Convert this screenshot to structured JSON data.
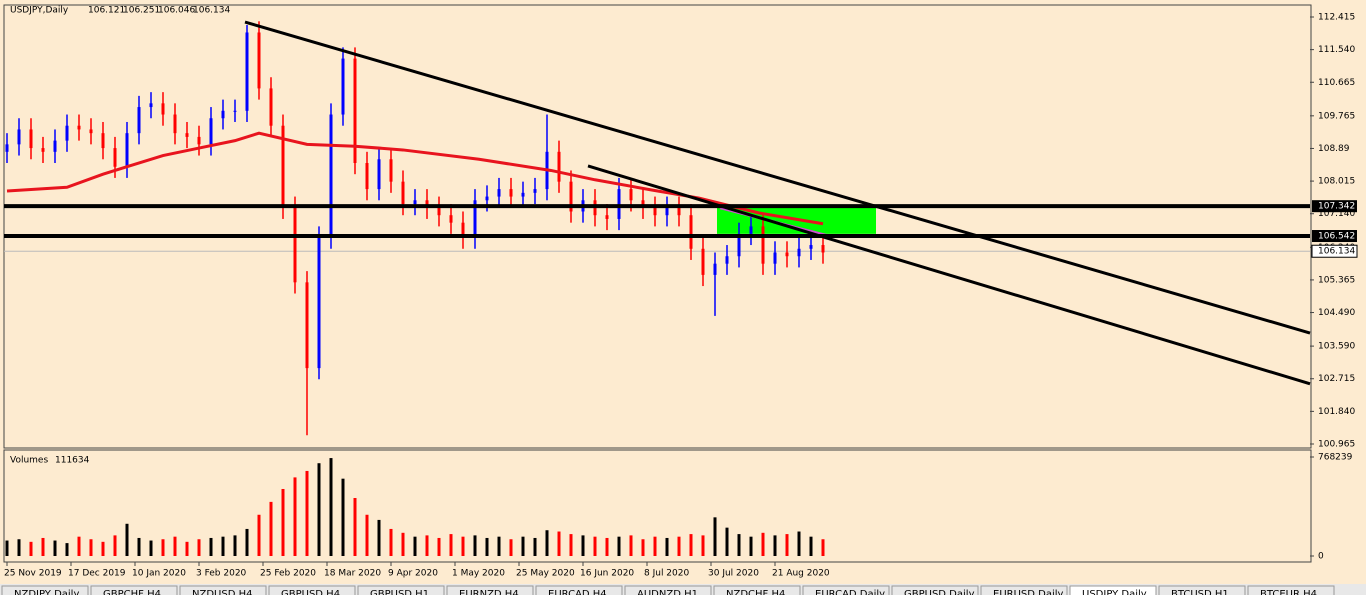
{
  "chart_data": {
    "type": "candlestick",
    "title": "USDJPY,Daily",
    "header_prices": [
      106.121,
      106.251,
      106.046,
      106.134
    ],
    "x": [
      0,
      3,
      6,
      9,
      12,
      15,
      18,
      21,
      24,
      27,
      30,
      33,
      36,
      39,
      42,
      45,
      48,
      51,
      54,
      57,
      60,
      63,
      66,
      69,
      72,
      75,
      78,
      81,
      84,
      87,
      90,
      93,
      96,
      99,
      102,
      105,
      108,
      111,
      114,
      117,
      120,
      123,
      126,
      129,
      132,
      135,
      138,
      141,
      144,
      147,
      150,
      153,
      156,
      159,
      162,
      165,
      168,
      171,
      174,
      177,
      180,
      183,
      186,
      189,
      192,
      195,
      198,
      201,
      204
    ],
    "open": [
      108.8,
      109.0,
      109.4,
      108.9,
      108.8,
      109.1,
      109.5,
      109.4,
      109.3,
      108.9,
      108.4,
      109.3,
      110.0,
      110.1,
      109.8,
      109.3,
      109.2,
      109.0,
      109.7,
      109.9,
      109.9,
      112.0,
      110.5,
      109.5,
      107.3,
      105.3,
      103.0,
      106.5,
      109.8,
      111.3,
      108.5,
      107.8,
      108.6,
      108.0,
      107.4,
      107.5,
      107.3,
      107.1,
      106.9,
      106.5,
      107.5,
      107.6,
      107.8,
      107.6,
      107.7,
      107.8,
      108.8,
      108.0,
      107.2,
      107.5,
      107.1,
      107.0,
      107.8,
      107.5,
      107.3,
      107.1,
      107.3,
      107.1,
      106.2,
      105.5,
      105.8,
      106.0,
      106.6,
      106.8,
      105.8,
      106.1,
      106.0,
      106.2,
      106.3
    ],
    "high": [
      109.3,
      109.7,
      109.7,
      109.2,
      109.4,
      109.8,
      109.8,
      109.7,
      109.6,
      109.2,
      109.6,
      110.3,
      110.4,
      110.4,
      110.1,
      109.6,
      109.5,
      110.0,
      110.2,
      110.2,
      112.2,
      112.3,
      110.8,
      109.8,
      107.6,
      105.6,
      106.8,
      110.1,
      111.6,
      111.6,
      108.8,
      108.9,
      108.9,
      108.3,
      107.8,
      107.8,
      107.6,
      107.4,
      107.2,
      107.8,
      107.9,
      108.1,
      108.1,
      108.0,
      108.1,
      109.8,
      109.1,
      108.3,
      107.8,
      107.8,
      107.4,
      108.1,
      108.1,
      107.8,
      107.6,
      107.6,
      107.6,
      107.4,
      106.5,
      106.1,
      106.3,
      106.9,
      107.1,
      107.1,
      106.4,
      106.4,
      106.5,
      106.6,
      106.6
    ],
    "low": [
      108.5,
      108.7,
      108.6,
      108.5,
      108.5,
      108.8,
      109.1,
      109.0,
      108.6,
      108.1,
      108.1,
      109.0,
      109.7,
      109.5,
      109.0,
      108.9,
      108.7,
      108.7,
      109.4,
      109.6,
      109.6,
      110.2,
      109.2,
      107.0,
      105.0,
      101.2,
      102.7,
      106.2,
      109.5,
      108.2,
      107.5,
      107.5,
      107.7,
      107.1,
      107.1,
      107.0,
      106.8,
      106.6,
      106.2,
      106.2,
      107.2,
      107.3,
      107.3,
      107.3,
      107.4,
      107.5,
      107.7,
      106.9,
      106.9,
      106.8,
      106.7,
      106.7,
      107.2,
      107.0,
      106.8,
      106.8,
      106.8,
      105.9,
      105.2,
      104.4,
      105.5,
      105.7,
      106.3,
      105.5,
      105.5,
      105.7,
      105.7,
      105.9,
      105.8
    ],
    "close": [
      109.0,
      109.4,
      108.9,
      108.8,
      109.1,
      109.5,
      109.4,
      109.3,
      108.9,
      108.4,
      109.3,
      110.0,
      110.1,
      109.8,
      109.3,
      109.2,
      109.0,
      109.7,
      109.9,
      109.9,
      112.0,
      110.5,
      109.5,
      107.3,
      105.3,
      103.0,
      106.5,
      109.8,
      111.3,
      108.5,
      107.8,
      108.6,
      108.0,
      107.4,
      107.5,
      107.3,
      107.1,
      106.9,
      106.5,
      107.5,
      107.6,
      107.8,
      107.6,
      107.7,
      107.8,
      108.8,
      108.0,
      107.2,
      107.5,
      107.1,
      107.0,
      107.8,
      107.5,
      107.3,
      107.1,
      107.3,
      107.1,
      106.2,
      105.5,
      105.8,
      106.0,
      106.6,
      106.8,
      105.8,
      106.1,
      106.0,
      106.2,
      106.3,
      106.1
    ],
    "volume": [
      120000,
      130000,
      110000,
      140000,
      120000,
      100000,
      150000,
      130000,
      110000,
      160000,
      250000,
      140000,
      120000,
      130000,
      150000,
      110000,
      130000,
      140000,
      150000,
      160000,
      210000,
      320000,
      420000,
      520000,
      610000,
      660000,
      720000,
      760000,
      600000,
      450000,
      320000,
      280000,
      210000,
      180000,
      150000,
      160000,
      140000,
      170000,
      150000,
      160000,
      140000,
      150000,
      130000,
      150000,
      140000,
      200000,
      190000,
      170000,
      160000,
      150000,
      140000,
      150000,
      160000,
      130000,
      150000,
      140000,
      150000,
      170000,
      160000,
      300000,
      220000,
      170000,
      150000,
      180000,
      160000,
      170000,
      190000,
      150000,
      130000
    ],
    "up_color": "#0000ff",
    "down_color": "#ff0000",
    "moving_average": {
      "color": "#e8141e",
      "x": [
        0,
        15,
        24,
        30,
        39,
        48,
        57,
        63,
        75,
        87,
        99,
        118,
        136,
        147,
        161,
        173,
        188,
        204
      ],
      "values": [
        107.75,
        107.85,
        108.2,
        108.4,
        108.7,
        108.9,
        109.1,
        109.3,
        109.0,
        108.95,
        108.85,
        108.6,
        108.3,
        108.05,
        107.78,
        107.56,
        107.16,
        106.87
      ]
    },
    "xlim": [
      -0.5,
      325.75
    ],
    "ylim": [
      100.965,
      112.415
    ],
    "yticks": [
      112.415,
      {
        "value": 111.54,
        "label": "111.540"
      },
      110.665,
      109.765,
      108.89,
      108.015,
      {
        "value": 107.14,
        "label": "107.140"
      },
      {
        "value": 106.24,
        "label": "106.240"
      },
      105.365,
      {
        "value": 104.49,
        "label": "104.490"
      },
      {
        "value": 103.59,
        "label": "103.590"
      },
      102.715,
      {
        "value": 101.84,
        "label": "101.840"
      },
      100.965
    ],
    "xticks": [
      {
        "value": 0,
        "label": "25 Nov 2019"
      },
      {
        "value": 16,
        "label": "17 Dec 2019"
      },
      {
        "value": 32,
        "label": "10 Jan 2020"
      },
      {
        "value": 48,
        "label": "3 Feb 2020"
      },
      {
        "value": 64,
        "label": "25 Feb 2020"
      },
      {
        "value": 80,
        "label": "18 Mar 2020"
      },
      {
        "value": 96,
        "label": "9 Apr 2020"
      },
      {
        "value": 112,
        "label": "1 May 2020"
      },
      {
        "value": 128,
        "label": "25 May 2020"
      },
      {
        "value": 144,
        "label": "16 Jun 2020"
      },
      {
        "value": 160,
        "label": "8 Jul 2020"
      },
      {
        "value": 176,
        "label": "30 Jul 2020"
      },
      {
        "value": 192,
        "label": "21 Aug 2020"
      }
    ],
    "last_price": 106.134,
    "horizontal_lines": [
      107.342,
      106.542
    ],
    "trendlines": [
      {
        "x": [
          59.5,
          325.75
        ],
        "y": [
          112.28,
          103.94
        ]
      },
      {
        "x": [
          145.25,
          325.75
        ],
        "y": [
          108.42,
          102.58
        ]
      }
    ],
    "pink_line": {
      "x": [
        178.25,
        205.75
      ],
      "y": [
        107.295,
        106.54
      ],
      "color": "#d050d0"
    },
    "zone": {
      "x": [
        177.5,
        217.25
      ],
      "y": [
        106.6,
        107.37
      ],
      "color": "#00ff00"
    },
    "volume_label": "Volumes",
    "volume_current": 111634,
    "volume_ylim": [
      0,
      768239
    ],
    "volume_yticks": [
      768239,
      0
    ]
  },
  "tabs": [
    "NZDJPY,Daily",
    "GBPCHF,H4",
    "NZDUSD,H4",
    "GBPUSD,H4",
    "GBPUSD,H1",
    "EURNZD,H4",
    "EURCAD,H4",
    "AUDNZD,H1",
    "NZDCHF,H4",
    "EURCAD,Daily",
    "GBPUSD,Daily",
    "EURUSD,Daily",
    "USDJPY,Daily",
    "BTCUSD,H1",
    "BTCEUR,H4"
  ],
  "active_tab": 12
}
